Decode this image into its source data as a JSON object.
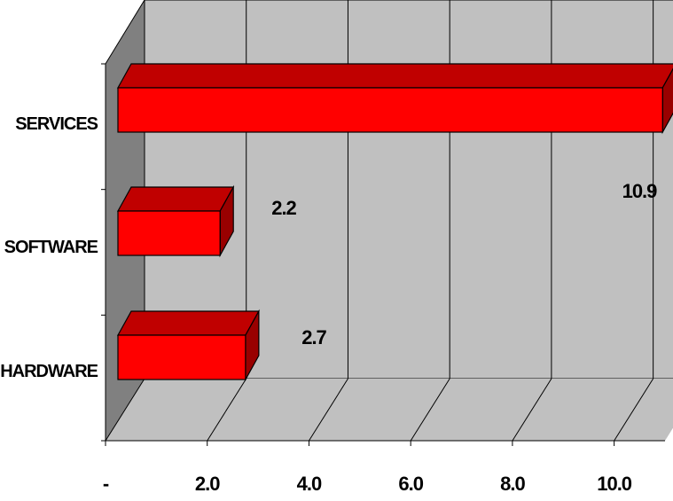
{
  "chart_data": {
    "type": "bar",
    "orientation": "horizontal",
    "three_d": true,
    "categories": [
      "SERVICES",
      "SOFTWARE",
      "HARDWARE"
    ],
    "values": [
      10.9,
      2.2,
      2.7
    ],
    "data_labels": [
      "10.9",
      "2.2",
      "2.7"
    ],
    "x_ticks": [
      {
        "value": 0,
        "label": "-"
      },
      {
        "value": 2,
        "label": "2.0"
      },
      {
        "value": 4,
        "label": "4.0"
      },
      {
        "value": 6,
        "label": "6.0"
      },
      {
        "value": 8,
        "label": "8.0"
      },
      {
        "value": 10,
        "label": "10.0"
      }
    ],
    "xlim": [
      0,
      11
    ],
    "grid": true,
    "legend": "none",
    "colors": {
      "bar_front": "#ff0000",
      "bar_top": "#c00000",
      "bar_side": "#990000",
      "wall": "#c0c0c0",
      "floor": "#c0c0c0",
      "side_wall": "#808080"
    }
  }
}
